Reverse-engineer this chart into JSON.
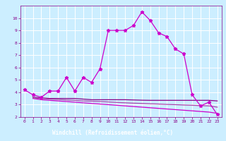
{
  "xlabel": "Windchill (Refroidissement éolien,°C)",
  "bg_color": "#cceeff",
  "grid_color": "#ffffff",
  "xlabel_bg": "#990099",
  "xlabel_fg": "#ffffff",
  "line_color": "#cc00cc",
  "line_color2": "#880088",
  "line_color3": "#aa44aa",
  "xlim": [
    -0.5,
    23.5
  ],
  "ylim": [
    2,
    11
  ],
  "yticks": [
    2,
    3,
    4,
    5,
    6,
    7,
    8,
    9,
    10
  ],
  "xticks": [
    0,
    1,
    2,
    3,
    4,
    5,
    6,
    7,
    8,
    9,
    10,
    11,
    12,
    13,
    14,
    15,
    16,
    17,
    18,
    19,
    20,
    21,
    22,
    23
  ],
  "curve1_x": [
    0,
    1,
    2,
    3,
    4,
    5,
    6,
    7,
    8,
    9,
    10,
    11,
    12,
    13,
    14,
    15,
    16,
    17,
    18,
    19,
    20,
    21,
    22,
    23
  ],
  "curve1_y": [
    4.2,
    3.8,
    3.6,
    4.1,
    4.1,
    5.2,
    4.1,
    5.2,
    4.8,
    5.9,
    9.0,
    9.0,
    9.0,
    9.4,
    10.5,
    9.8,
    8.8,
    8.5,
    7.5,
    7.1,
    3.8,
    2.9,
    3.2,
    2.2
  ],
  "curve2_x": [
    1,
    2,
    3,
    4,
    5,
    6,
    7,
    8,
    9,
    10,
    11,
    12,
    13,
    14,
    15,
    16,
    17,
    18,
    19,
    20,
    21,
    22,
    23
  ],
  "curve2_y": [
    3.6,
    3.55,
    3.5,
    3.5,
    3.5,
    3.5,
    3.45,
    3.4,
    3.4,
    3.4,
    3.4,
    3.4,
    3.38,
    3.36,
    3.35,
    3.35,
    3.35,
    3.35,
    3.35,
    3.35,
    3.35,
    3.35,
    3.3
  ],
  "curve3_x": [
    1,
    2,
    3,
    4,
    5,
    6,
    7,
    8,
    9,
    10,
    11,
    12,
    13,
    14,
    15,
    16,
    17,
    18,
    19,
    20,
    21,
    22,
    23
  ],
  "curve3_y": [
    3.5,
    3.4,
    3.35,
    3.3,
    3.25,
    3.2,
    3.15,
    3.1,
    3.05,
    3.0,
    2.95,
    2.9,
    2.85,
    2.8,
    2.75,
    2.7,
    2.65,
    2.6,
    2.55,
    2.5,
    2.45,
    2.4,
    2.3
  ],
  "curve4_x": [
    1,
    2,
    3,
    4,
    5,
    6,
    7,
    8,
    9,
    10,
    11,
    12,
    13,
    14,
    15,
    16,
    17,
    18,
    19,
    20,
    21,
    22,
    23
  ],
  "curve4_y": [
    3.55,
    3.5,
    3.45,
    3.42,
    3.38,
    3.35,
    3.3,
    3.28,
    3.25,
    3.22,
    3.18,
    3.15,
    3.12,
    3.1,
    3.07,
    3.05,
    3.02,
    3.0,
    2.97,
    2.95,
    2.92,
    2.9,
    2.8
  ]
}
